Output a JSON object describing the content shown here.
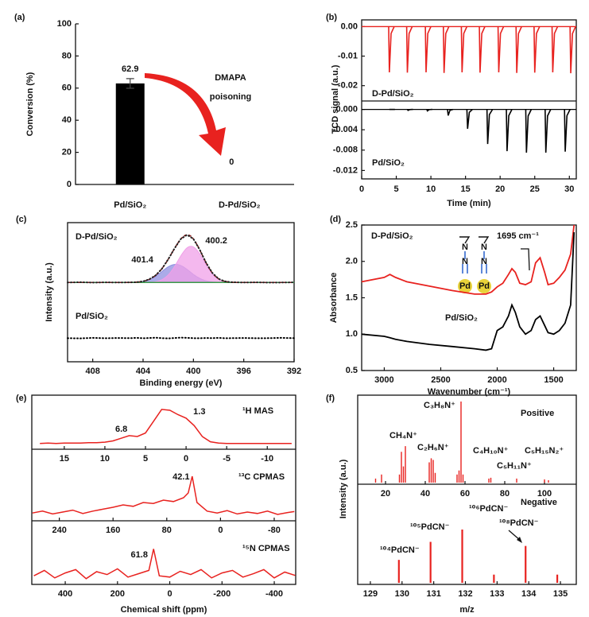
{
  "chart_data": [
    {
      "type": "bar",
      "label": "(a)",
      "ylabel": "Conversion (%)",
      "categories": [
        "Pd/SiO₂",
        "D-Pd/SiO₂"
      ],
      "values": [
        62.9,
        0
      ],
      "value_labels": [
        "62.9",
        "0"
      ],
      "errors": [
        3,
        null
      ],
      "colors": [
        "#000000",
        "#e8221f"
      ],
      "annotation": [
        "DMAPA",
        "poisoning"
      ],
      "ylim": [
        0,
        100
      ],
      "yticks": [
        0,
        20,
        40,
        60,
        80,
        100
      ]
    },
    {
      "type": "pulse",
      "label": "(b)",
      "xlabel": "Time (min)",
      "ylabel": "TCD signal (a.u.)",
      "xlim": [
        0,
        31
      ],
      "xticks": [
        0,
        5,
        10,
        15,
        20,
        25,
        30
      ],
      "series": [
        {
          "name": "D-Pd/SiO₂",
          "color": "#e8221f",
          "x": [
            3.9,
            6.5,
            9.2,
            11.8,
            14.4,
            17,
            19.7,
            22.3,
            24.9,
            27.5,
            30.1
          ],
          "values": [
            -0.0155,
            -0.0156,
            -0.0155,
            -0.0157,
            -0.0155,
            -0.0156,
            -0.0155,
            -0.0157,
            -0.0156,
            -0.0155,
            -0.0158
          ],
          "ylim": [
            -0.026,
            0.002
          ],
          "yticks": [
            {
              "value": 0,
              "label": "0.00"
            },
            -0.01,
            -0.02
          ]
        },
        {
          "name": "Pd/SiO₂",
          "color": "#000000",
          "x": [
            4,
            6.6,
            9.4,
            12.4,
            15.2,
            18.1,
            20.9,
            23.7,
            26.5,
            29.3
          ],
          "values": [
            0,
            -0.0002,
            -0.0003,
            -0.0012,
            -0.0038,
            -0.0068,
            -0.0082,
            -0.0085,
            -0.0085,
            -0.0083
          ],
          "ylim": [
            -0.0135,
            0.0015
          ],
          "yticks": [
            {
              "value": 0,
              "label": "0.000"
            },
            -0.004,
            -0.008,
            -0.012
          ]
        }
      ]
    },
    {
      "type": "xps",
      "label": "(c)",
      "xlabel": "Binding energy (eV)",
      "ylabel": "Intensity (a.u.)",
      "xlim": [
        410,
        392
      ],
      "xticks": [
        408,
        404,
        400,
        396,
        392
      ],
      "ylim": [
        0,
        10
      ],
      "x": [
        410,
        409,
        408,
        407,
        406,
        405,
        404.5,
        404,
        403.5,
        403,
        402.5,
        402,
        401.5,
        401,
        400.5,
        400,
        399.5,
        399,
        398.5,
        398,
        397.5,
        397,
        396,
        395,
        394,
        393,
        392
      ],
      "series": [
        {
          "name": "D-Pd/SiO₂",
          "color": "#e8221f",
          "values": [
            5.7,
            5.72,
            5.69,
            5.71,
            5.7,
            5.71,
            5.72,
            5.78,
            5.93,
            6.21,
            6.69,
            7.37,
            8.15,
            8.83,
            9.12,
            8.83,
            8.05,
            7.12,
            6.39,
            5.96,
            5.78,
            5.72,
            5.7,
            5.71,
            5.69,
            5.7,
            5.71
          ]
        },
        {
          "name": "Pd/SiO₂",
          "color": "#000000",
          "values": [
            1.7,
            1.68,
            1.72,
            1.69,
            1.71,
            1.7,
            1.72,
            1.69,
            1.71,
            1.73,
            1.7,
            1.68,
            1.71,
            1.74,
            1.72,
            1.7,
            1.69,
            1.71,
            1.7,
            1.72,
            1.69,
            1.7,
            1.71,
            1.69,
            1.7,
            1.72,
            1.7
          ]
        }
      ],
      "peaks": [
        {
          "center": 401.4,
          "height": 1.3,
          "fwhm": 2.6,
          "color": "#8f8fe0"
        },
        {
          "center": 400.2,
          "height": 2.6,
          "fwhm": 2.4,
          "color": "#f0a0e8"
        }
      ]
    },
    {
      "type": "line",
      "label": "(d)",
      "xlabel": "Wavenumber (cm⁻¹)",
      "ylabel": "Absorbance",
      "annotation": "1695 cm⁻¹",
      "molecule": [
        "N",
        "N",
        "N",
        "N",
        "Pd",
        "Pd"
      ],
      "xlim": [
        3200,
        1300
      ],
      "xticks": [
        3000,
        2500,
        2000,
        1500
      ],
      "ylim": [
        0.5,
        2.5
      ],
      "yticks": [
        0.5,
        {
          "value": 1,
          "label": "1.0"
        },
        1.5,
        {
          "value": 2,
          "label": "2.0"
        },
        2.5
      ],
      "x": [
        3200,
        3000,
        2950,
        2900,
        2800,
        2600,
        2400,
        2200,
        2100,
        2050,
        2000,
        1950,
        1900,
        1870,
        1840,
        1800,
        1750,
        1700,
        1660,
        1620,
        1580,
        1550,
        1500,
        1450,
        1400,
        1350,
        1320
      ],
      "series": [
        {
          "name": "D-Pd/SiO₂",
          "color": "#e8221f",
          "values": [
            1.72,
            1.78,
            1.82,
            1.78,
            1.72,
            1.66,
            1.6,
            1.55,
            1.55,
            1.58,
            1.65,
            1.7,
            1.82,
            1.9,
            1.85,
            1.7,
            1.68,
            1.72,
            1.98,
            2.05,
            1.85,
            1.68,
            1.7,
            1.78,
            1.88,
            2.1,
            2.5
          ]
        },
        {
          "name": "Pd/SiO₂",
          "color": "#000000",
          "values": [
            1.0,
            0.97,
            0.95,
            0.93,
            0.9,
            0.86,
            0.83,
            0.8,
            0.78,
            0.8,
            1.05,
            1.1,
            1.25,
            1.4,
            1.3,
            1.1,
            1.0,
            1.05,
            1.2,
            1.25,
            1.12,
            1.02,
            1.0,
            1.05,
            1.15,
            1.4,
            2.4
          ]
        }
      ]
    },
    {
      "type": "stack",
      "label": "(e)",
      "xlabel": "Chemical shift (ppm)",
      "subplots": [
        {
          "type": "spectrum",
          "name": "¹H MAS",
          "color": "#e8221f",
          "xlim": [
            19,
            -13.5
          ],
          "xticks": [
            15,
            10,
            5,
            0,
            -5,
            -10
          ],
          "ylim": [
            0,
            1
          ],
          "peak_labels": [
            6.8,
            1.3
          ],
          "x": [
            18,
            17,
            16,
            15,
            14,
            13,
            12,
            11,
            10,
            9,
            8,
            7,
            6,
            5,
            4,
            3,
            2,
            1,
            0,
            -1,
            -2,
            -3,
            -4,
            -5,
            -6,
            -7,
            -8,
            -9,
            -10,
            -11,
            -12,
            -13
          ],
          "values": [
            0.04,
            0.05,
            0.04,
            0.05,
            0.05,
            0.05,
            0.06,
            0.06,
            0.07,
            0.1,
            0.16,
            0.22,
            0.2,
            0.28,
            0.55,
            0.82,
            0.8,
            0.7,
            0.62,
            0.45,
            0.2,
            0.08,
            0.05,
            0.04,
            0.04,
            0.04,
            0.04,
            0.04,
            0.04,
            0.04,
            0.04,
            0.04
          ]
        },
        {
          "type": "spectrum",
          "name": "¹³C CPMAS",
          "color": "#e8221f",
          "xlim": [
            281,
            -112
          ],
          "xticks": [
            240,
            160,
            80,
            0,
            -80
          ],
          "ylim": [
            0,
            1
          ],
          "peak_labels": [
            42.1
          ],
          "x": [
            280,
            265,
            250,
            235,
            220,
            205,
            190,
            175,
            160,
            145,
            130,
            115,
            100,
            85,
            70,
            55,
            48,
            42.1,
            35,
            20,
            5,
            -10,
            -25,
            -40,
            -55,
            -70,
            -85,
            -100,
            -110
          ],
          "values": [
            0.08,
            0.12,
            0.06,
            0.1,
            0.14,
            0.07,
            0.12,
            0.16,
            0.2,
            0.25,
            0.22,
            0.3,
            0.28,
            0.35,
            0.32,
            0.4,
            0.5,
            0.85,
            0.3,
            0.12,
            0.08,
            0.13,
            0.06,
            0.1,
            0.07,
            0.12,
            0.05,
            0.09,
            0.11
          ]
        },
        {
          "type": "spectrum",
          "name": "¹⁵N CPMAS",
          "color": "#e8221f",
          "xlim": [
            528,
            -482
          ],
          "xticks": [
            400,
            200,
            0,
            -200,
            -400
          ],
          "ylim": [
            0,
            1
          ],
          "peak_labels": [
            61.8
          ],
          "x": [
            520,
            480,
            440,
            400,
            360,
            320,
            280,
            240,
            200,
            160,
            120,
            80,
            61.8,
            40,
            0,
            -40,
            -80,
            -120,
            -160,
            -200,
            -240,
            -280,
            -320,
            -360,
            -400,
            -440,
            -480
          ],
          "values": [
            0.15,
            0.28,
            0.1,
            0.22,
            0.3,
            0.08,
            0.25,
            0.18,
            0.32,
            0.12,
            0.2,
            0.28,
            0.8,
            0.15,
            0.12,
            0.26,
            0.18,
            0.3,
            0.1,
            0.22,
            0.28,
            0.12,
            0.2,
            0.3,
            0.1,
            0.24,
            0.16
          ]
        }
      ]
    },
    {
      "type": "stack",
      "label": "(f)",
      "xlabel": "m/z",
      "ylabel": "Intensity (a.u.)",
      "subplots": [
        {
          "type": "stick",
          "name": "Positive",
          "color": "#e8221f",
          "xlim": [
            6,
            116
          ],
          "xticks": [
            20,
            40,
            60,
            80,
            100
          ],
          "ylim": [
            0,
            1
          ],
          "peak_labels": [
            "C₃H₈N⁺",
            "CH₄N⁺",
            "C₂H₆N⁺",
            "C₄H₁₀N⁺",
            "C₅H₁₅N₂⁺",
            "C₅H₁₁N⁺"
          ],
          "x": [
            15,
            18,
            27,
            28,
            29,
            30,
            42,
            43,
            44,
            45,
            56,
            57,
            58,
            59,
            72,
            73,
            86,
            100,
            102
          ],
          "values": [
            0.05,
            0.1,
            0.1,
            0.38,
            0.2,
            0.45,
            0.25,
            0.3,
            0.28,
            0.12,
            0.1,
            0.15,
            1.0,
            0.1,
            0.05,
            0.06,
            0.05,
            0.04,
            0.03
          ]
        },
        {
          "type": "stick",
          "name": "Negative",
          "color": "#e8221f",
          "xlim": [
            128.6,
            135.5
          ],
          "xticks": [
            129,
            130,
            131,
            132,
            133,
            134,
            135
          ],
          "ylim": [
            0,
            1
          ],
          "peak_labels": [
            "¹⁰⁴PdCN⁻",
            "¹⁰⁵PdCN⁻",
            "¹⁰⁶PdCN⁻",
            "¹⁰⁸PdCN⁻"
          ],
          "x": [
            129.9,
            130.9,
            131.9,
            132.9,
            133.9,
            134.9
          ],
          "values": [
            0.28,
            0.5,
            0.65,
            0.1,
            0.45,
            0.1
          ]
        }
      ]
    }
  ]
}
